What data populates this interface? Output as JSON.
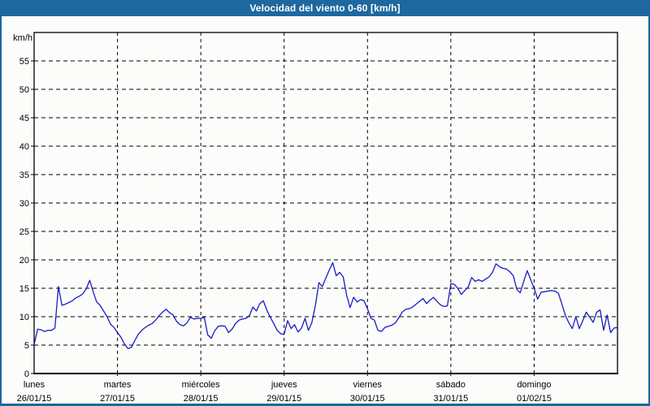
{
  "window": {
    "title": "Velocidad del viento 0-60 [km/h]"
  },
  "colors": {
    "title_bar_bg": "#1d689e",
    "title_bar_text": "#ffffff",
    "window_border": "#1d689e",
    "background": "#fcfdfa",
    "grid": "#000000",
    "line": "#1a1ac8"
  },
  "chart_data": {
    "type": "line",
    "title": "Velocidad del viento 0-60 [km/h]",
    "ylabel": "km/h",
    "xlabel": "",
    "ylim": [
      0,
      60
    ],
    "ytick_step": 5,
    "yticks": [
      0,
      5,
      10,
      15,
      20,
      25,
      30,
      35,
      40,
      45,
      50,
      55
    ],
    "grid": "dashed",
    "legend_position": "none",
    "x_days": [
      {
        "day": "lunes",
        "date": "26/01/15"
      },
      {
        "day": "martes",
        "date": "27/01/15"
      },
      {
        "day": "miércoles",
        "date": "28/01/15"
      },
      {
        "day": "jueves",
        "date": "29/01/15"
      },
      {
        "day": "viernes",
        "date": "30/01/15"
      },
      {
        "day": "sábado",
        "date": "31/01/15"
      },
      {
        "day": "domingo",
        "date": "01/02/15"
      }
    ],
    "sampling_interval_hours": 1,
    "series": [
      {
        "name": "Velocidad del viento",
        "unit": "km/h",
        "values": [
          5.1,
          7.8,
          7.7,
          7.4,
          7.6,
          7.6,
          8.0,
          15.3,
          12.0,
          12.2,
          12.5,
          12.8,
          13.3,
          13.6,
          14.0,
          14.9,
          16.4,
          14.4,
          12.6,
          12.0,
          11.0,
          10.0,
          8.7,
          8.1,
          7.2,
          6.4,
          5.2,
          4.4,
          4.6,
          5.8,
          6.9,
          7.6,
          8.1,
          8.5,
          8.8,
          9.4,
          10.2,
          10.8,
          11.3,
          10.7,
          10.3,
          9.2,
          8.6,
          8.4,
          8.9,
          9.9,
          9.6,
          9.7,
          9.7,
          9.9,
          6.8,
          6.2,
          7.5,
          8.3,
          8.4,
          8.3,
          7.2,
          7.8,
          8.8,
          9.4,
          9.6,
          9.7,
          10.2,
          11.7,
          11.0,
          12.3,
          12.8,
          11.2,
          9.9,
          8.8,
          7.6,
          7.0,
          6.9,
          9.3,
          7.9,
          8.6,
          7.3,
          8.0,
          9.7,
          7.6,
          9.0,
          12.0,
          16.0,
          15.3,
          16.8,
          18.2,
          19.5,
          17.2,
          17.8,
          17.0,
          13.8,
          11.6,
          13.4,
          12.6,
          13.0,
          12.8,
          11.4,
          9.7,
          9.4,
          7.6,
          7.4,
          8.1,
          8.3,
          8.5,
          8.9,
          9.8,
          10.8,
          11.3,
          11.4,
          11.7,
          12.2,
          12.7,
          13.2,
          12.3,
          12.9,
          13.4,
          12.7,
          12.1,
          11.8,
          11.9,
          15.8,
          15.7,
          15.0,
          13.9,
          14.6,
          15.2,
          16.9,
          16.2,
          16.5,
          16.2,
          16.6,
          17.0,
          17.8,
          19.3,
          18.8,
          18.5,
          18.4,
          17.9,
          17.2,
          14.8,
          14.2,
          16.2,
          18.1,
          16.5,
          15.0,
          13.1,
          14.3,
          14.4,
          14.5,
          14.6,
          14.5,
          14.1,
          12.2,
          10.2,
          8.9,
          7.9,
          10.0,
          7.9,
          9.3,
          10.8,
          9.9,
          9.0,
          10.8,
          11.2,
          7.6,
          10.3,
          7.2,
          8.0,
          8.1
        ]
      }
    ]
  }
}
